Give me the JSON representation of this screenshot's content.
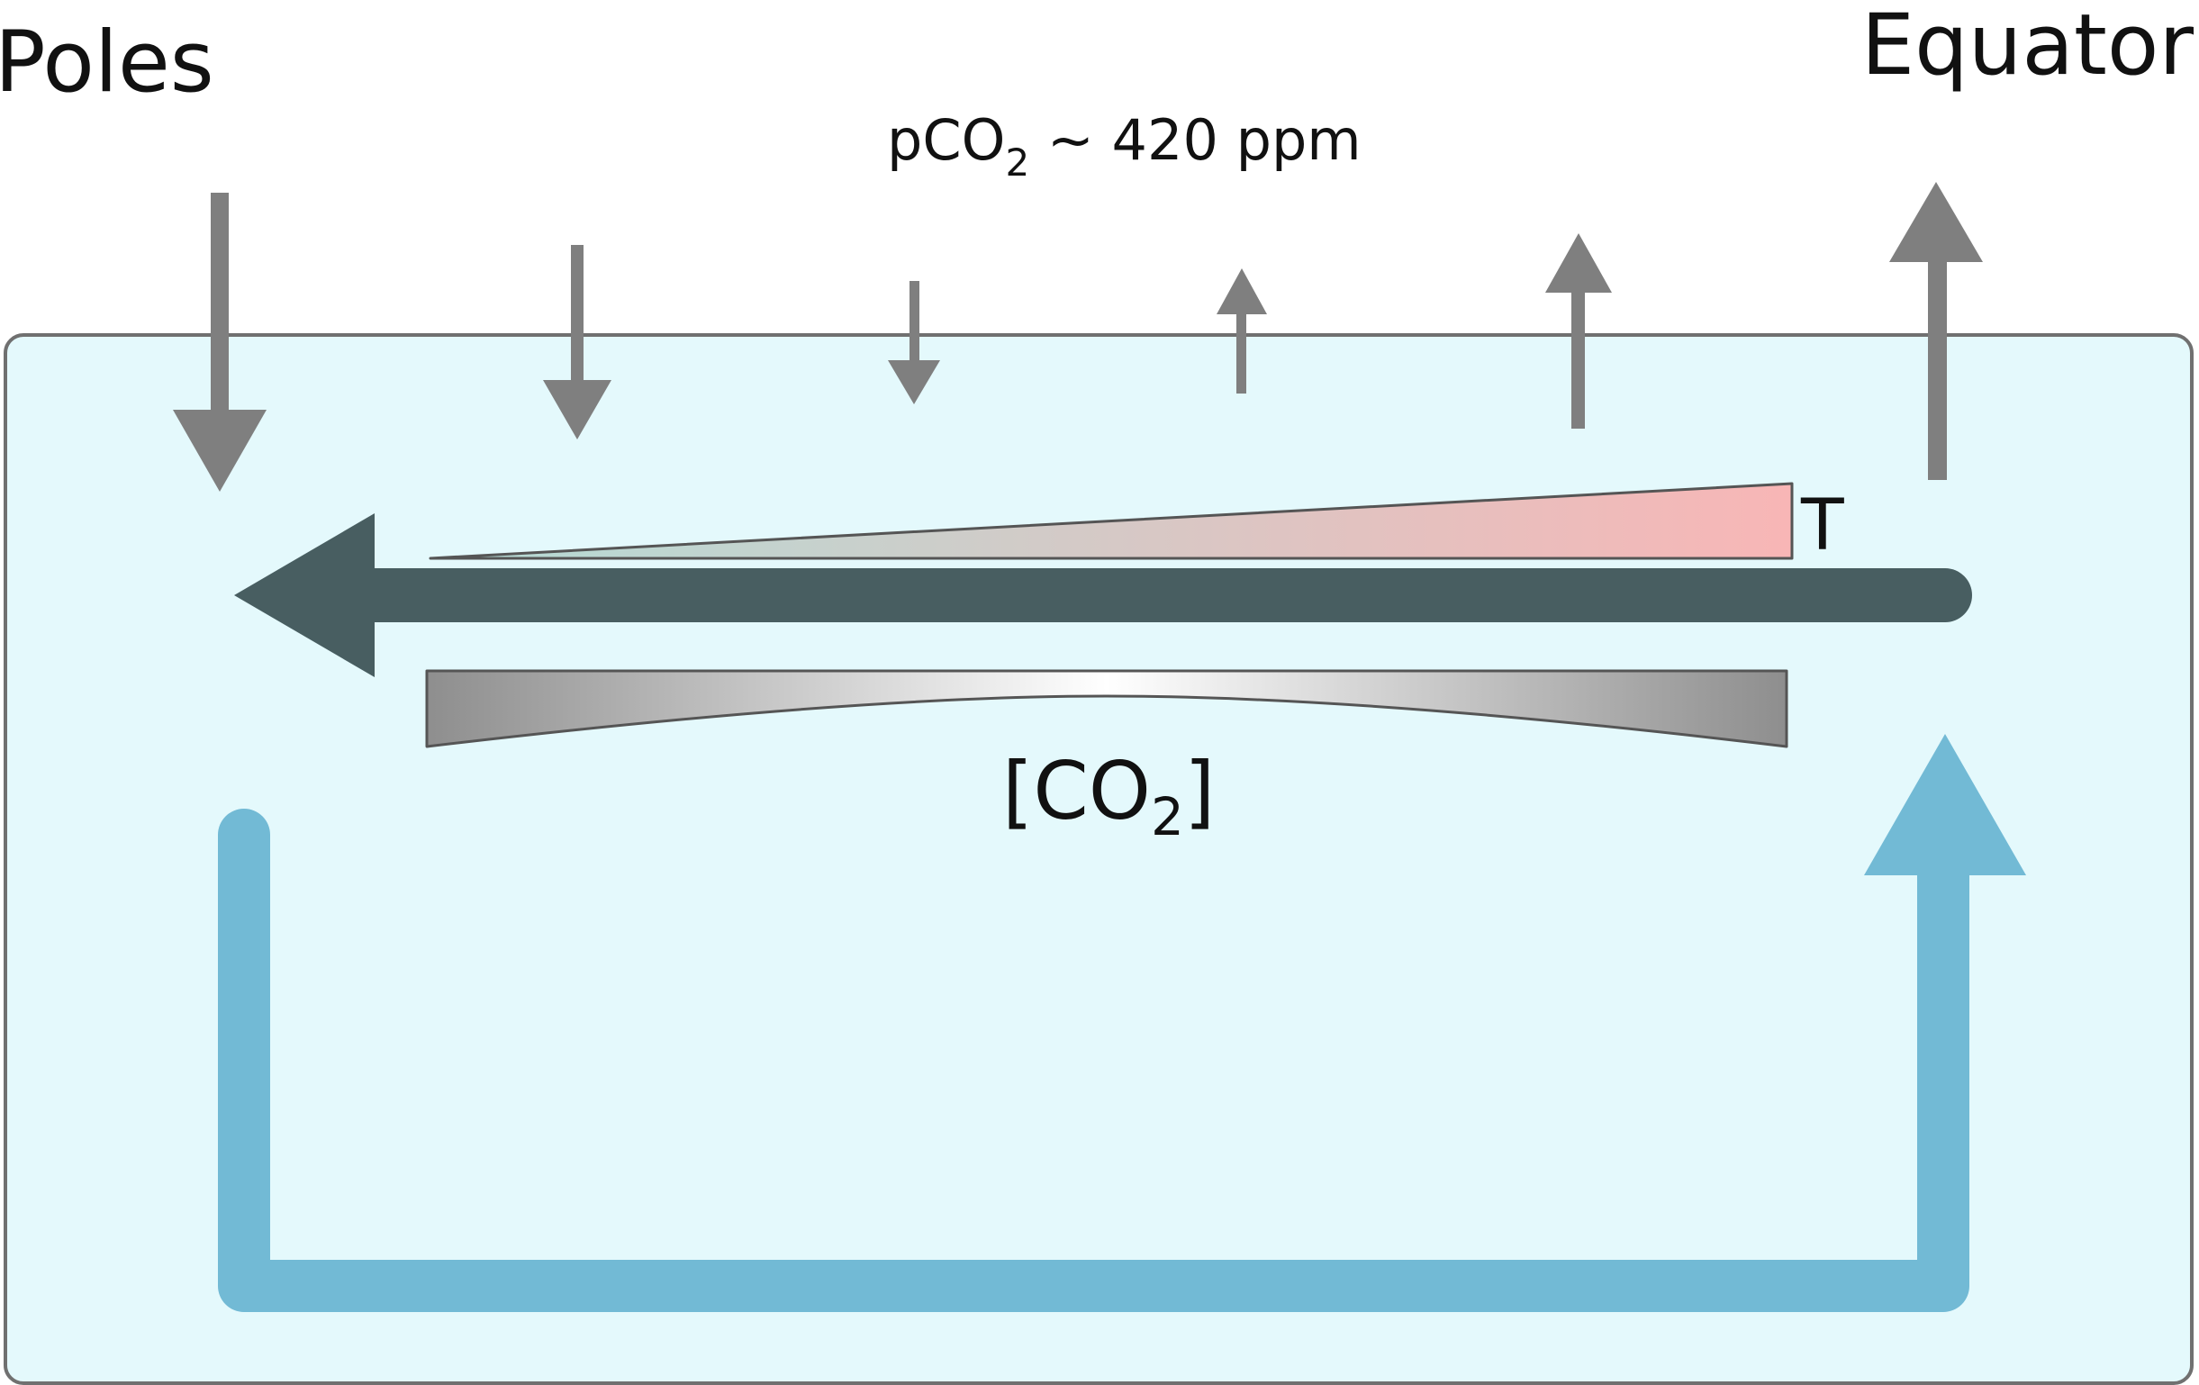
{
  "labels": {
    "poles": "Poles",
    "equator": "Equator",
    "atmosphere_prefix": "pCO",
    "atmosphere_subscript": "2",
    "atmosphere_suffix": " ~ 420 ppm",
    "temperature": "T",
    "concentration_open": "[CO",
    "concentration_subscript": "2",
    "concentration_close": "]"
  },
  "colors": {
    "ocean_fill": "#e4f9fc",
    "ocean_border": "#707070",
    "flux_arrows": "#7f7f7f",
    "surface_current": "#485e61",
    "deep_circulation": "#72bad5",
    "temperature_cold": "#b3dcd6",
    "temperature_warm": "#f8b6b6",
    "co2_edge": "#8e8e8e",
    "co2_center": "#ffffff"
  },
  "icons": {
    "air_sea_flux": "vertical-arrow",
    "surface_flow": "left-arrow",
    "overturning": "u-shaped-arrow",
    "temperature_gradient": "wedge",
    "co2_gradient": "concave-bar"
  }
}
